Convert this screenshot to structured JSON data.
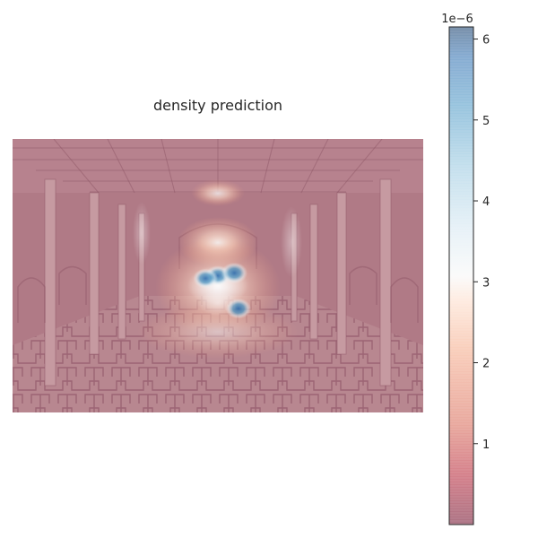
{
  "chart_data": {
    "type": "heatmap",
    "title": "density prediction",
    "xlabel": "",
    "ylabel": "",
    "grid": false,
    "axes_visible": false,
    "colormap": "RdBu",
    "colormap_alpha": 0.5,
    "background": "dim indoor hall with pillars, arches and a patterned tiled floor",
    "colorbar": {
      "min": 0.0,
      "max": 6.15e-06,
      "ticks": [
        1,
        2,
        3,
        4,
        5,
        6
      ],
      "tick_labels": [
        "1",
        "2",
        "3",
        "4",
        "5",
        "6"
      ],
      "offset_label": "1e−6",
      "location": "right"
    },
    "hotspots": [
      {
        "x": 0.5,
        "y": 0.5,
        "value": 5.2e-06
      },
      {
        "x": 0.54,
        "y": 0.49,
        "value": 5.8e-06
      },
      {
        "x": 0.47,
        "y": 0.51,
        "value": 4.9e-06
      },
      {
        "x": 0.55,
        "y": 0.62,
        "value": 5.4e-06
      },
      {
        "x": 0.5,
        "y": 0.6,
        "value": 3.4e-06
      },
      {
        "x": 0.5,
        "y": 0.38,
        "value": 2.6e-06
      },
      {
        "x": 0.5,
        "y": 0.2,
        "value": 1.7e-06
      }
    ],
    "baseline_value": 3e-07
  }
}
